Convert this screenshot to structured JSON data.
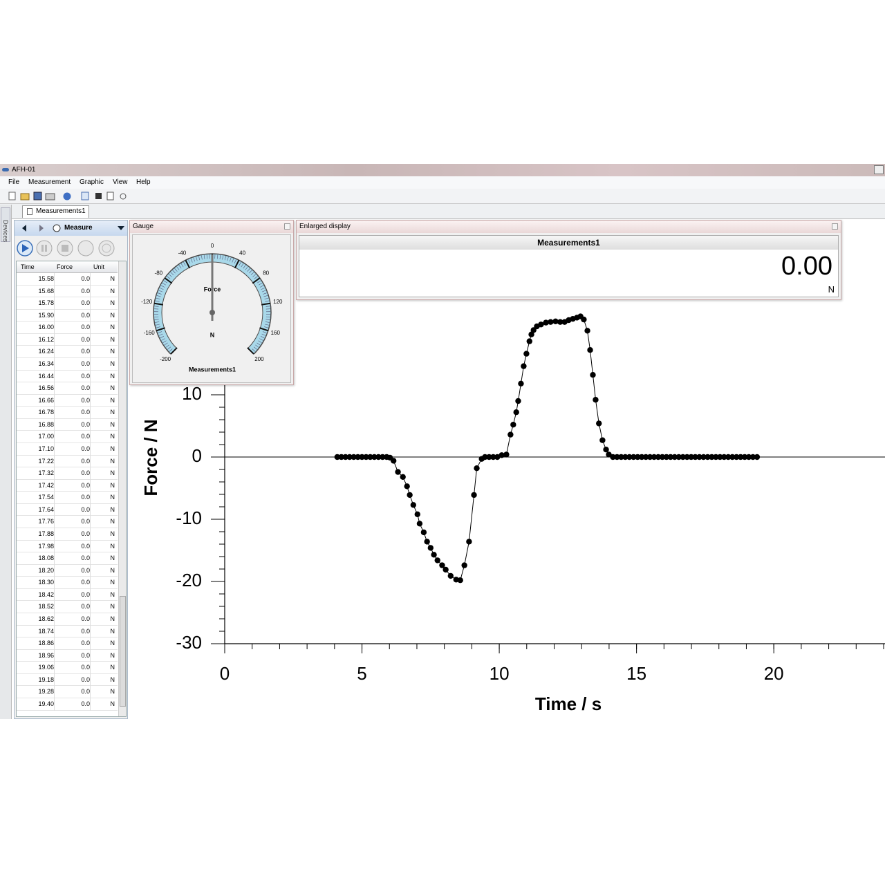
{
  "window": {
    "title": "AFH-01"
  },
  "menu": [
    "File",
    "Measurement",
    "Graphic",
    "View",
    "Help"
  ],
  "sidebar": {
    "label": "Devices"
  },
  "tab": {
    "label": "Measurements1"
  },
  "measure_panel": {
    "mode": "Measure",
    "table": {
      "columns": [
        "Time",
        "Force",
        "Unit"
      ],
      "rows": [
        [
          "15.58",
          "0.0",
          "N"
        ],
        [
          "15.68",
          "0.0",
          "N"
        ],
        [
          "15.78",
          "0.0",
          "N"
        ],
        [
          "15.90",
          "0.0",
          "N"
        ],
        [
          "16.00",
          "0.0",
          "N"
        ],
        [
          "16.12",
          "0.0",
          "N"
        ],
        [
          "16.24",
          "0.0",
          "N"
        ],
        [
          "16.34",
          "0.0",
          "N"
        ],
        [
          "16.44",
          "0.0",
          "N"
        ],
        [
          "16.56",
          "0.0",
          "N"
        ],
        [
          "16.66",
          "0.0",
          "N"
        ],
        [
          "16.78",
          "0.0",
          "N"
        ],
        [
          "16.88",
          "0.0",
          "N"
        ],
        [
          "17.00",
          "0.0",
          "N"
        ],
        [
          "17.10",
          "0.0",
          "N"
        ],
        [
          "17.22",
          "0.0",
          "N"
        ],
        [
          "17.32",
          "0.0",
          "N"
        ],
        [
          "17.42",
          "0.0",
          "N"
        ],
        [
          "17.54",
          "0.0",
          "N"
        ],
        [
          "17.64",
          "0.0",
          "N"
        ],
        [
          "17.76",
          "0.0",
          "N"
        ],
        [
          "17.88",
          "0.0",
          "N"
        ],
        [
          "17.98",
          "0.0",
          "N"
        ],
        [
          "18.08",
          "0.0",
          "N"
        ],
        [
          "18.20",
          "0.0",
          "N"
        ],
        [
          "18.30",
          "0.0",
          "N"
        ],
        [
          "18.42",
          "0.0",
          "N"
        ],
        [
          "18.52",
          "0.0",
          "N"
        ],
        [
          "18.62",
          "0.0",
          "N"
        ],
        [
          "18.74",
          "0.0",
          "N"
        ],
        [
          "18.86",
          "0.0",
          "N"
        ],
        [
          "18.96",
          "0.0",
          "N"
        ],
        [
          "19.06",
          "0.0",
          "N"
        ],
        [
          "19.18",
          "0.0",
          "N"
        ],
        [
          "19.28",
          "0.0",
          "N"
        ],
        [
          "19.40",
          "0.0",
          "N"
        ]
      ]
    }
  },
  "gauge": {
    "title": "Gauge",
    "label": "Force",
    "unit": "N",
    "source": "Measurements1",
    "ticks": [
      -200,
      -160,
      -120,
      -80,
      -40,
      0,
      40,
      80,
      120,
      160,
      200
    ],
    "value": 0
  },
  "enlarged_display": {
    "title": "Enlarged display",
    "source": "Measurements1",
    "value": "0.00",
    "unit": "N"
  },
  "chart_data": {
    "type": "line",
    "xlabel": "Time / s",
    "ylabel": "Force / N",
    "xlim": [
      0,
      24
    ],
    "xticks": [
      0,
      5,
      10,
      15,
      20
    ],
    "ylim": [
      -30,
      38
    ],
    "yticks": [
      -30,
      -20,
      -10,
      0,
      10
    ],
    "color": "#000000",
    "markers": true,
    "x": [
      4.1,
      4.25,
      4.4,
      4.55,
      4.7,
      4.85,
      5.0,
      5.15,
      5.3,
      5.45,
      5.6,
      5.75,
      5.9,
      6.02,
      6.15,
      6.31,
      6.49,
      6.64,
      6.74,
      6.87,
      7.02,
      7.1,
      7.25,
      7.37,
      7.5,
      7.62,
      7.75,
      7.92,
      8.05,
      8.23,
      8.43,
      8.58,
      8.73,
      8.9,
      9.08,
      9.18,
      9.36,
      9.48,
      9.63,
      9.78,
      9.93,
      10.09,
      10.26,
      10.41,
      10.51,
      10.62,
      10.69,
      10.79,
      10.89,
      10.99,
      11.1,
      11.17,
      11.25,
      11.37,
      11.52,
      11.7,
      11.87,
      12.05,
      12.22,
      12.38,
      12.53,
      12.68,
      12.83,
      12.96,
      13.08,
      13.21,
      13.31,
      13.41,
      13.51,
      13.63,
      13.76,
      13.89,
      13.99,
      14.14,
      14.29,
      14.44,
      14.59,
      14.74,
      14.89,
      15.04,
      15.19,
      15.34,
      15.49,
      15.64,
      15.79,
      15.94,
      16.09,
      16.24,
      16.39,
      16.54,
      16.69,
      16.84,
      16.99,
      17.14,
      17.29,
      17.44,
      17.59,
      17.74,
      17.89,
      18.04,
      18.19,
      18.34,
      18.49,
      18.64,
      18.79,
      18.94,
      19.09,
      19.24,
      19.39
    ],
    "values": [
      0,
      0,
      0,
      0,
      0,
      0,
      0,
      0,
      0,
      0,
      0,
      0,
      0,
      -0.1,
      -0.6,
      -2.4,
      -3.2,
      -4.7,
      -6.1,
      -7.7,
      -9.2,
      -10.7,
      -12.1,
      -13.6,
      -14.6,
      -15.7,
      -16.6,
      -17.4,
      -18.1,
      -19.1,
      -19.7,
      -19.8,
      -17.4,
      -13.6,
      -6.1,
      -1.8,
      -0.3,
      0,
      0,
      0,
      0,
      0.3,
      0.4,
      3.6,
      5.2,
      7.2,
      9,
      11.8,
      14.6,
      16.6,
      18.6,
      19.7,
      20.4,
      21,
      21.3,
      21.6,
      21.7,
      21.8,
      21.7,
      21.7,
      22,
      22.2,
      22.4,
      22.6,
      22.1,
      20.3,
      17.2,
      13.2,
      9.2,
      5.4,
      2.7,
      1.2,
      0.4,
      0,
      0,
      0,
      0,
      0,
      0,
      0,
      0,
      0,
      0,
      0,
      0,
      0,
      0,
      0,
      0,
      0,
      0,
      0,
      0,
      0,
      0,
      0,
      0,
      0,
      0,
      0,
      0,
      0,
      0,
      0,
      0,
      0,
      0,
      0,
      0
    ]
  }
}
